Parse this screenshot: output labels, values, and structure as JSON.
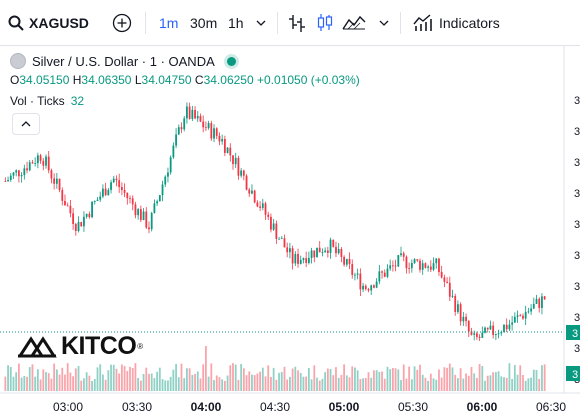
{
  "toolbar": {
    "symbol": "XAGUSD",
    "timeframes": [
      "1m",
      "30m",
      "1h"
    ],
    "active_timeframe": "1m",
    "indicators_label": "Indicators"
  },
  "legend": {
    "title": "Silver / U.S. Dollar · 1 · OANDA",
    "o_label": "O",
    "o_value": "34.05150",
    "h_label": "H",
    "h_value": "34.06350",
    "l_label": "L",
    "l_value": "34.04750",
    "c_label": "C",
    "c_value": "34.06250",
    "change": "+0.01050 (+0.03%)",
    "vol_label": "Vol · Ticks",
    "vol_value": "32"
  },
  "watermark": {
    "text": "KITCO",
    "reg": "®"
  },
  "price_axis": {
    "labels": [
      "3",
      "3",
      "3",
      "3",
      "3",
      "3",
      "3",
      "3",
      "3",
      "3"
    ],
    "current_price_badge": "3",
    "volume_badge": "3"
  },
  "time_axis": {
    "labels": [
      "03:00",
      "03:30",
      "04:00",
      "04:30",
      "05:00",
      "05:30",
      "06:00",
      "06:30"
    ]
  },
  "colors": {
    "up": "#089981",
    "down": "#f23645",
    "accent": "#2962ff"
  },
  "chart_data": {
    "type": "candlestick",
    "x": [
      "02:45",
      "03:00",
      "03:15",
      "03:30",
      "03:45",
      "04:00",
      "04:15",
      "04:30",
      "04:45",
      "05:00",
      "05:15",
      "05:30",
      "05:45",
      "06:00",
      "06:15",
      "06:30"
    ],
    "y": [
      0.62,
      0.72,
      0.45,
      0.63,
      0.45,
      0.88,
      0.78,
      0.55,
      0.32,
      0.38,
      0.22,
      0.32,
      0.3,
      0.02,
      0.08,
      0.18
    ],
    "volume_last": 32
  }
}
